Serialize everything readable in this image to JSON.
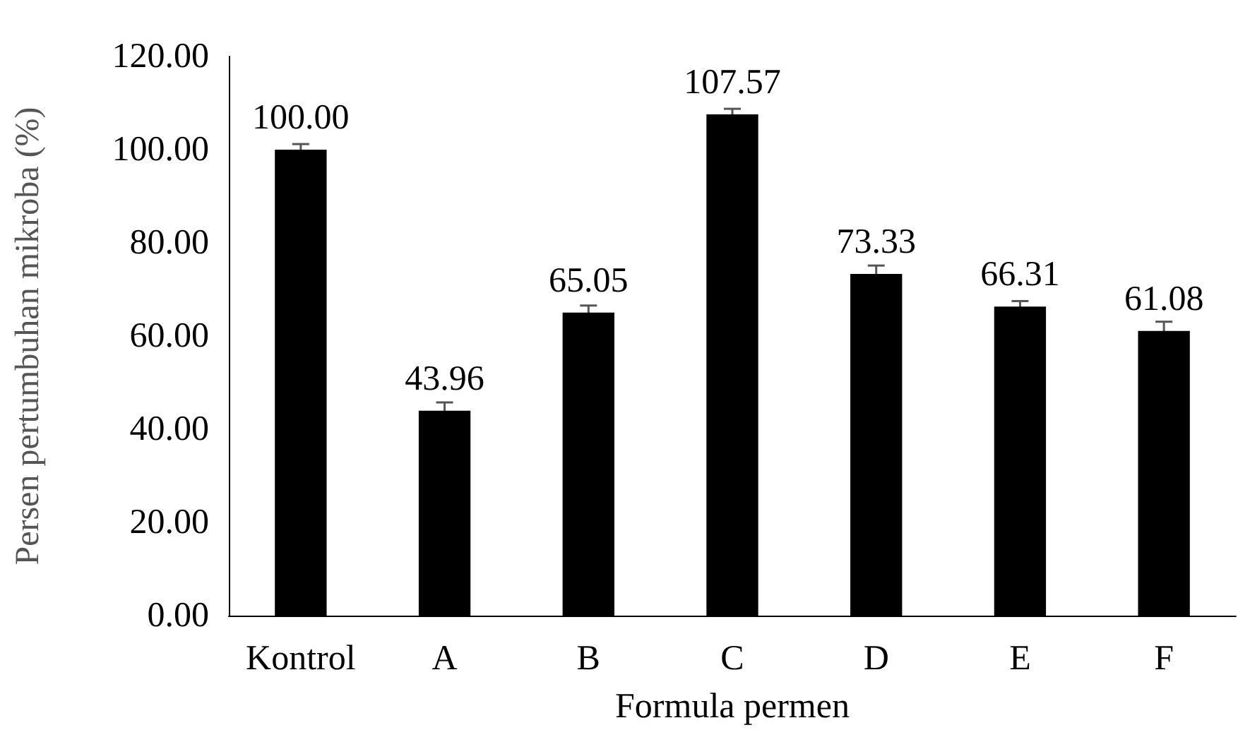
{
  "chart_data": {
    "type": "bar",
    "xlabel": "Formula permen",
    "ylabel": "Persen pertumbuhan mikroba (%)",
    "categories": [
      "Kontrol",
      "A",
      "B",
      "C",
      "D",
      "E",
      "F"
    ],
    "values": [
      100.0,
      43.96,
      65.05,
      107.57,
      73.33,
      66.31,
      61.08
    ],
    "value_labels": [
      "100.00",
      "43.96",
      "65.05",
      "107.57",
      "73.33",
      "66.31",
      "61.08"
    ],
    "errors": [
      1.2,
      1.8,
      1.5,
      1.2,
      1.8,
      1.2,
      2.0
    ],
    "color": "#000000",
    "ylim": [
      0,
      120
    ],
    "yticks": [
      {
        "value": 0,
        "label": "0.00"
      },
      {
        "value": 20,
        "label": "20.00"
      },
      {
        "value": 40,
        "label": "40.00"
      },
      {
        "value": 60,
        "label": "60.00"
      },
      {
        "value": 80,
        "label": "80.00"
      },
      {
        "value": 100,
        "label": "100.00"
      },
      {
        "value": 120,
        "label": "120.00"
      }
    ],
    "grid": false
  }
}
